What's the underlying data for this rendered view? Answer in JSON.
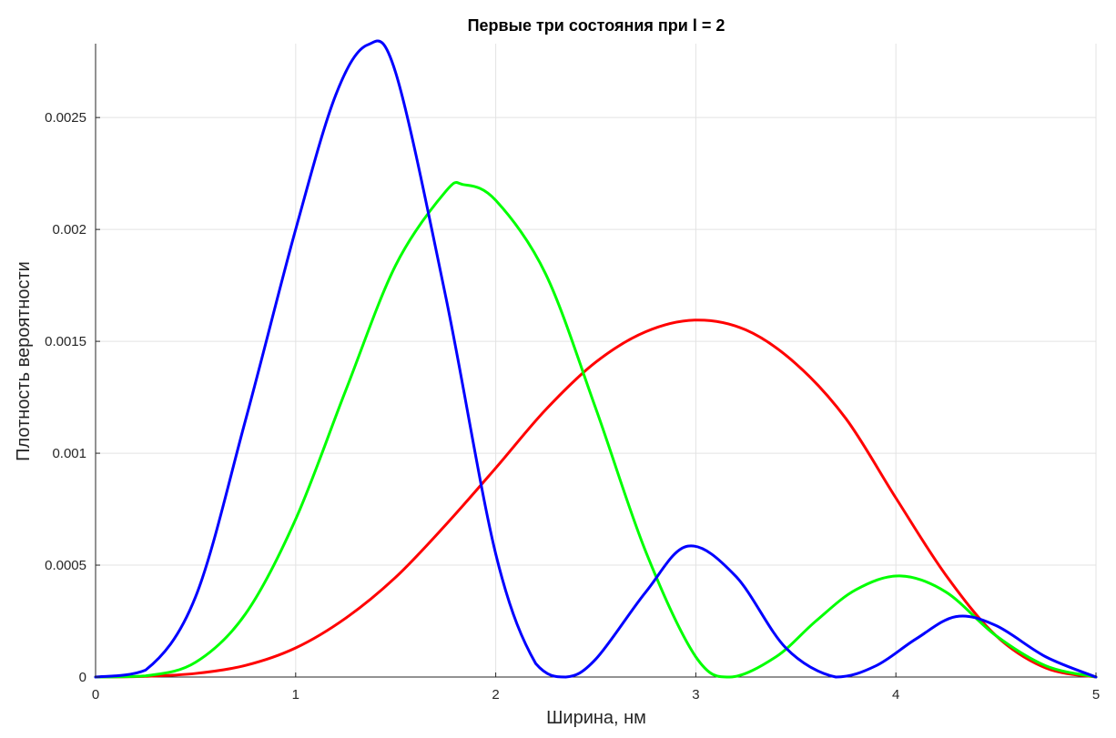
{
  "chart_data": {
    "type": "line",
    "title": "Первые три состояния при l = 2",
    "xlabel": "Ширина, нм",
    "ylabel": "Плотность вероятности",
    "xlim": [
      0,
      5
    ],
    "ylim": [
      0,
      0.00283
    ],
    "grid": true,
    "legend": "none",
    "x_ticks": [
      {
        "value": 0,
        "label": "0"
      },
      {
        "value": 1,
        "label": "1"
      },
      {
        "value": 2,
        "label": "2"
      },
      {
        "value": 3,
        "label": "3"
      },
      {
        "value": 4,
        "label": "4"
      },
      {
        "value": 5,
        "label": "5"
      }
    ],
    "y_ticks": [
      {
        "value": 0,
        "label": "0"
      },
      {
        "value": 0.0005,
        "label": "0.0005"
      },
      {
        "value": 0.001,
        "label": "0.001"
      },
      {
        "value": 0.0015,
        "label": "0.0015"
      },
      {
        "value": 0.002,
        "label": "0.002"
      },
      {
        "value": 0.0025,
        "label": "0.0025"
      }
    ],
    "series": [
      {
        "color": "#ff0000",
        "x": [
          0,
          0.25,
          0.5,
          0.75,
          1.0,
          1.25,
          1.5,
          1.75,
          2.0,
          2.25,
          2.5,
          2.75,
          3.0,
          3.25,
          3.5,
          3.75,
          4.0,
          4.25,
          4.5,
          4.75,
          5.0
        ],
        "y": [
          0,
          3e-06,
          1.6e-05,
          5.2e-05,
          0.00013,
          0.000263,
          0.000446,
          0.00068,
          0.000934,
          0.001195,
          0.001407,
          0.001543,
          0.001595,
          0.001551,
          0.0014,
          0.001155,
          0.0008,
          0.000455,
          0.000185,
          4e-05,
          0
        ]
      },
      {
        "color": "#00ff00",
        "x": [
          0,
          0.25,
          0.5,
          0.75,
          1.0,
          1.25,
          1.5,
          1.75,
          1.84,
          2.0,
          2.25,
          2.5,
          2.75,
          3.0,
          3.17,
          3.4,
          3.6,
          3.8,
          4.02,
          4.25,
          4.5,
          4.75,
          5.0
        ],
        "y": [
          0,
          5e-06,
          6.6e-05,
          0.000283,
          0.000705,
          0.00128,
          0.00184,
          0.00217,
          0.0022,
          0.00213,
          0.0018,
          0.0012,
          0.00056,
          9e-05,
          0,
          9e-05,
          0.00025,
          0.00039,
          0.000452,
          0.00038,
          0.000185,
          5e-05,
          0
        ]
      },
      {
        "color": "#0000ff",
        "x": [
          0,
          0.25,
          0.5,
          0.75,
          1.0,
          1.2,
          1.36,
          1.5,
          1.75,
          2.0,
          2.2,
          2.35,
          2.5,
          2.75,
          2.96,
          3.2,
          3.45,
          3.7,
          3.9,
          4.1,
          4.3,
          4.5,
          4.75,
          5.0
        ],
        "y": [
          0,
          3.1e-05,
          0.000359,
          0.00115,
          0.002,
          0.0026,
          0.002825,
          0.0027,
          0.0017,
          0.00055,
          6e-05,
          0,
          8e-05,
          0.00038,
          0.000585,
          0.00045,
          0.00013,
          0,
          5e-05,
          0.00017,
          0.00027,
          0.00023,
          9e-05,
          0
        ]
      }
    ]
  }
}
